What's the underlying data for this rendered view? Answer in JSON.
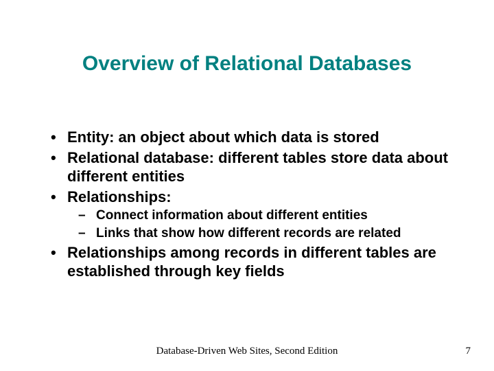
{
  "slide": {
    "background_color": "#ffffff",
    "title": {
      "text": "Overview of Relational Databases",
      "color": "#008080",
      "font_size_pt": 30,
      "font_weight": "bold"
    },
    "bullets": {
      "font_color": "#000000",
      "level1_font_size_pt": 22,
      "level2_font_size_pt": 19,
      "items": [
        {
          "level": 1,
          "text": "Entity: an object about which data is stored"
        },
        {
          "level": 1,
          "text": "Relational database: different tables store data about different entities"
        },
        {
          "level": 1,
          "text": "Relationships:"
        },
        {
          "level": 2,
          "text": "Connect information about different entities"
        },
        {
          "level": 2,
          "text": "Links that show how different records are related"
        },
        {
          "level": 1,
          "text": "Relationships among records in different tables are established through key fields"
        }
      ]
    },
    "footer": {
      "center_text": "Database-Driven Web Sites, Second Edition",
      "page_number": "7",
      "font_family": "Times New Roman",
      "font_size_pt": 15,
      "color": "#000000"
    }
  }
}
